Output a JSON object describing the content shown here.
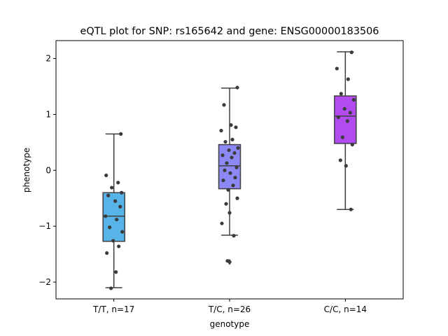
{
  "chart_data": {
    "type": "box",
    "title": "eQTL plot for SNP: rs165642 and gene: ENSG00000183506",
    "xlabel": "genotype",
    "ylabel": "phenotype",
    "categories": [
      "T/T, n=17",
      "T/C, n=26",
      "C/C, n=14"
    ],
    "ylim": [
      -2.3,
      2.32
    ],
    "yticks": [
      -2,
      -1,
      0,
      1,
      2
    ],
    "ytick_labels": [
      "−2",
      "−1",
      "0",
      "1",
      "2"
    ],
    "grid": false,
    "legend": "none",
    "boxes": [
      {
        "category": "T/T, n=17",
        "color": "#56b4e9",
        "whisker_low": -2.1,
        "q1": -1.27,
        "median": -0.82,
        "q3": -0.4,
        "whisker_high": 0.65,
        "outliers": []
      },
      {
        "category": "T/C, n=26",
        "color": "#8c88f4",
        "whisker_low": -1.16,
        "q1": -0.33,
        "median": 0.08,
        "q3": 0.46,
        "whisker_high": 1.47,
        "outliers": [
          -1.64
        ]
      },
      {
        "category": "C/C, n=14",
        "color": "#b34cf0",
        "whisker_low": -0.7,
        "q1": 0.48,
        "median": 0.97,
        "q3": 1.33,
        "whisker_high": 2.12,
        "outliers": []
      }
    ],
    "points": [
      [
        -0.09,
        -0.22,
        -0.31,
        -0.4,
        -0.45,
        -0.55,
        -0.65,
        -0.82,
        -0.88,
        -1.02,
        -1.1,
        -1.26,
        -1.36,
        -1.48,
        -1.82,
        -2.11,
        0.65
      ],
      [
        1.48,
        1.17,
        0.81,
        0.77,
        0.71,
        0.55,
        0.51,
        0.4,
        0.36,
        0.31,
        0.27,
        0.23,
        0.13,
        0.05,
        0.0,
        -0.05,
        -0.13,
        -0.18,
        -0.27,
        -0.35,
        -0.5,
        -0.6,
        -0.76,
        -0.95,
        -1.17,
        -1.62
      ],
      [
        2.11,
        1.82,
        1.63,
        1.37,
        1.26,
        1.1,
        1.03,
        0.95,
        0.88,
        0.59,
        0.46,
        0.18,
        0.08,
        -0.7
      ]
    ],
    "colors": {
      "edge": "#3f3f3f",
      "point": "#3b3b3b"
    }
  }
}
